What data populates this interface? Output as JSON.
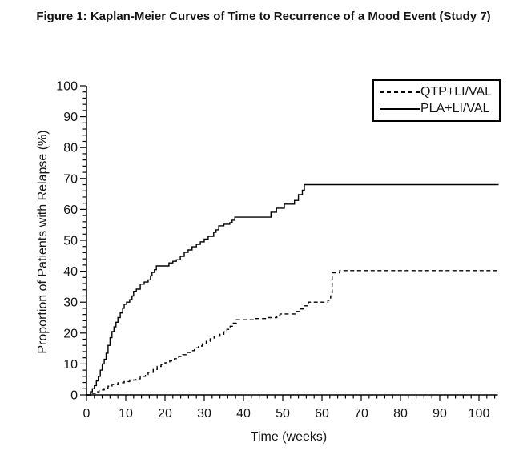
{
  "figure": {
    "title": "Figure 1: Kaplan-Meier Curves of Time to Recurrence of a Mood Event (Study 7)"
  },
  "chart_data": {
    "type": "line",
    "subtype": "kaplan-meier-step",
    "title": "Figure 1: Kaplan-Meier Curves of Time to Recurrence of a Mood Event (Study 7)",
    "xlabel": "Time (weeks)",
    "ylabel": "Proportion of Patients with Relapse (%)",
    "xlim": [
      0,
      105
    ],
    "ylim": [
      0,
      100
    ],
    "x_major_ticks": [
      0,
      10,
      20,
      30,
      40,
      50,
      60,
      70,
      80,
      90,
      100
    ],
    "x_minor_step": 2,
    "y_major_ticks": [
      0,
      10,
      20,
      30,
      40,
      50,
      60,
      70,
      80,
      90,
      100
    ],
    "y_minor_step": 2,
    "grid": false,
    "legend_position": "top-right",
    "axis_color": "#000000",
    "series": [
      {
        "name": "QTP+LI/VAL",
        "line_style": "dashed",
        "color": "#000000",
        "points": [
          [
            0,
            0
          ],
          [
            1.5,
            0.5
          ],
          [
            2.4,
            1
          ],
          [
            3.2,
            1.6
          ],
          [
            4.5,
            2.1
          ],
          [
            5.5,
            2.8
          ],
          [
            6.5,
            3.4
          ],
          [
            8,
            3.9
          ],
          [
            9.6,
            4.3
          ],
          [
            11,
            4.8
          ],
          [
            12.6,
            5.2
          ],
          [
            13.7,
            6
          ],
          [
            15,
            6.6
          ],
          [
            15.7,
            7.3
          ],
          [
            17,
            8.2
          ],
          [
            18,
            9.2
          ],
          [
            19,
            9.8
          ],
          [
            20,
            10.4
          ],
          [
            21.2,
            11
          ],
          [
            22.4,
            11.7
          ],
          [
            23.5,
            12.4
          ],
          [
            24.5,
            13
          ],
          [
            25.5,
            13.7
          ],
          [
            26.5,
            14.3
          ],
          [
            27.5,
            15.2
          ],
          [
            28.5,
            15.8
          ],
          [
            29.5,
            16.5
          ],
          [
            30.5,
            17.3
          ],
          [
            31.5,
            18.1
          ],
          [
            32.5,
            19
          ],
          [
            34,
            19.6
          ],
          [
            35,
            20.4
          ],
          [
            35.8,
            21.2
          ],
          [
            36.6,
            22.2
          ],
          [
            37.4,
            23.2
          ],
          [
            38.2,
            24.3
          ],
          [
            43,
            24.7
          ],
          [
            46,
            25
          ],
          [
            48.5,
            25.8
          ],
          [
            49.3,
            26.2
          ],
          [
            53.5,
            27
          ],
          [
            54.5,
            27.8
          ],
          [
            55.3,
            28.8
          ],
          [
            56.5,
            30
          ],
          [
            61.5,
            30.6
          ],
          [
            62.2,
            32
          ],
          [
            62.6,
            39.5
          ],
          [
            64.5,
            40.2
          ],
          [
            105,
            40.2
          ]
        ]
      },
      {
        "name": "PLA+LI/VAL",
        "line_style": "solid",
        "color": "#000000",
        "points": [
          [
            0,
            0
          ],
          [
            1,
            1
          ],
          [
            1.5,
            2
          ],
          [
            2,
            3
          ],
          [
            2.5,
            4.5
          ],
          [
            3,
            6
          ],
          [
            3.5,
            8
          ],
          [
            4,
            10
          ],
          [
            4.5,
            11.5
          ],
          [
            5,
            13.5
          ],
          [
            5.5,
            16
          ],
          [
            6,
            18.5
          ],
          [
            6.5,
            20.5
          ],
          [
            7,
            22
          ],
          [
            7.5,
            23.5
          ],
          [
            8,
            25
          ],
          [
            8.6,
            26.5
          ],
          [
            9.2,
            28
          ],
          [
            9.6,
            29.3
          ],
          [
            10.2,
            30
          ],
          [
            11,
            30.8
          ],
          [
            11.6,
            32
          ],
          [
            12,
            33.5
          ],
          [
            12.7,
            34.2
          ],
          [
            13.7,
            35.8
          ],
          [
            14.7,
            36.5
          ],
          [
            15.7,
            37.2
          ],
          [
            16.3,
            38.5
          ],
          [
            16.7,
            39.6
          ],
          [
            17.3,
            40.5
          ],
          [
            17.8,
            41.7
          ],
          [
            21,
            42.7
          ],
          [
            22,
            43.2
          ],
          [
            22.9,
            43.7
          ],
          [
            23.9,
            44.8
          ],
          [
            24.9,
            46.1
          ],
          [
            25.9,
            46.9
          ],
          [
            26.9,
            47.9
          ],
          [
            28,
            48.7
          ],
          [
            29,
            49.5
          ],
          [
            30,
            50.4
          ],
          [
            31,
            51.3
          ],
          [
            32.4,
            52.6
          ],
          [
            33,
            53.4
          ],
          [
            33.7,
            54.7
          ],
          [
            35,
            55.2
          ],
          [
            36.5,
            55.7
          ],
          [
            37.1,
            56.5
          ],
          [
            37.8,
            57.5
          ],
          [
            47,
            59.1
          ],
          [
            48.4,
            60.4
          ],
          [
            50.4,
            61.7
          ],
          [
            53,
            62.9
          ],
          [
            54,
            64.8
          ],
          [
            55,
            66.2
          ],
          [
            55.5,
            68
          ],
          [
            105,
            68
          ]
        ]
      }
    ]
  }
}
